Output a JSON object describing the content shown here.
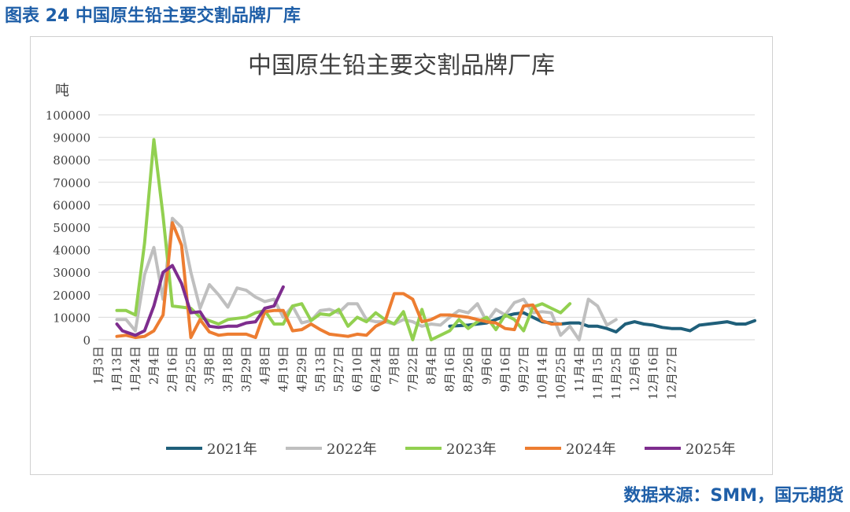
{
  "figure_title": "图表 24 中国原生铅主要交割品牌厂库",
  "source": "数据来源：SMM，国元期货",
  "chart_data": {
    "type": "line",
    "title": "中国原生铅主要交割品牌厂库",
    "ylabel": "吨",
    "ylim": [
      0,
      100000
    ],
    "yticks": [
      "0",
      "10000",
      "20000",
      "30000",
      "40000",
      "50000",
      "60000",
      "70000",
      "80000",
      "90000",
      "100000"
    ],
    "xticks": [
      "1月3日",
      "1月13日",
      "1月24日",
      "2月4日",
      "2月16日",
      "2月25日",
      "3月8日",
      "3月18日",
      "3月29日",
      "4月8日",
      "4月19日",
      "4月29日",
      "5月13日",
      "5月27日",
      "6月10日",
      "6月24日",
      "7月8日",
      "7月22日",
      "8月4日",
      "8月16日",
      "8月26日",
      "9月6日",
      "9月16日",
      "9月27日",
      "10月14日",
      "10月25日",
      "11月4日",
      "11月15日",
      "11月25日",
      "12月6日",
      "12月16日",
      "12月27日"
    ],
    "grid": true,
    "legend_position": "bottom",
    "series": [
      {
        "name": "2021年",
        "color": "#1f5f7a",
        "points": [
          [
            19.0,
            6000
          ],
          [
            20.0,
            6500
          ],
          [
            21.0,
            7500
          ],
          [
            21.5,
            9000
          ],
          [
            22.0,
            10500
          ],
          [
            22.5,
            11500
          ],
          [
            23.0,
            12000
          ],
          [
            23.5,
            10000
          ],
          [
            24.0,
            8000
          ],
          [
            24.5,
            7500
          ],
          [
            25.0,
            7000
          ],
          [
            25.5,
            7500
          ],
          [
            26.0,
            7500
          ],
          [
            26.5,
            6000
          ],
          [
            27.0,
            6000
          ],
          [
            27.5,
            5000
          ],
          [
            28.0,
            3500
          ],
          [
            28.5,
            7000
          ],
          [
            29.0,
            8000
          ],
          [
            29.5,
            7000
          ],
          [
            30.0,
            6500
          ],
          [
            30.5,
            5500
          ],
          [
            31.0,
            5000
          ],
          [
            31.5,
            5000
          ],
          [
            32.0,
            4000
          ],
          [
            32.5,
            6500
          ],
          [
            33.0,
            7000
          ],
          [
            33.5,
            7500
          ],
          [
            34.0,
            8000
          ],
          [
            34.5,
            7000
          ],
          [
            35.0,
            7000
          ],
          [
            35.5,
            8500
          ]
        ]
      },
      {
        "name": "2022年",
        "color": "#bfbfbf",
        "points": [
          [
            1.0,
            9000
          ],
          [
            1.5,
            9000
          ],
          [
            2.0,
            4000
          ],
          [
            2.5,
            29000
          ],
          [
            3.0,
            41000
          ],
          [
            3.5,
            18000
          ],
          [
            4.0,
            54000
          ],
          [
            4.5,
            50000
          ],
          [
            5.0,
            30000
          ],
          [
            5.5,
            14000
          ],
          [
            6.0,
            24500
          ],
          [
            6.5,
            20000
          ],
          [
            7.0,
            14500
          ],
          [
            7.5,
            23000
          ],
          [
            8.0,
            22000
          ],
          [
            8.5,
            19000
          ],
          [
            9.0,
            17000
          ],
          [
            9.5,
            18000
          ],
          [
            10.0,
            10000
          ],
          [
            10.5,
            15000
          ],
          [
            11.0,
            7500
          ],
          [
            11.5,
            8500
          ],
          [
            12.0,
            13000
          ],
          [
            12.5,
            13500
          ],
          [
            13.0,
            12000
          ],
          [
            13.5,
            16000
          ],
          [
            14.0,
            16000
          ],
          [
            14.5,
            9000
          ],
          [
            15.0,
            8000
          ],
          [
            15.5,
            8000
          ],
          [
            16.0,
            7000
          ],
          [
            16.5,
            9000
          ],
          [
            17.0,
            8000
          ],
          [
            17.5,
            6000
          ],
          [
            18.0,
            7000
          ],
          [
            18.5,
            6500
          ],
          [
            19.0,
            10000
          ],
          [
            19.5,
            13000
          ],
          [
            20.0,
            12000
          ],
          [
            20.5,
            16000
          ],
          [
            21.0,
            8000
          ],
          [
            21.5,
            13500
          ],
          [
            22.0,
            11000
          ],
          [
            22.5,
            16500
          ],
          [
            23.0,
            18000
          ],
          [
            23.5,
            12000
          ],
          [
            24.0,
            12500
          ],
          [
            24.5,
            12000
          ],
          [
            25.0,
            2000
          ],
          [
            25.5,
            6000
          ],
          [
            26.0,
            0
          ],
          [
            26.5,
            18000
          ],
          [
            27.0,
            15000
          ],
          [
            27.5,
            6500
          ],
          [
            28.0,
            9000
          ]
        ]
      },
      {
        "name": "2023年",
        "color": "#92d050",
        "points": [
          [
            1.0,
            13000
          ],
          [
            1.5,
            13000
          ],
          [
            2.0,
            11000
          ],
          [
            2.5,
            43000
          ],
          [
            3.0,
            89000
          ],
          [
            3.5,
            55000
          ],
          [
            4.0,
            15000
          ],
          [
            4.5,
            14500
          ],
          [
            5.0,
            14000
          ],
          [
            5.5,
            10000
          ],
          [
            6.0,
            8500
          ],
          [
            6.5,
            7000
          ],
          [
            7.0,
            9000
          ],
          [
            7.5,
            9500
          ],
          [
            8.0,
            10000
          ],
          [
            8.5,
            12000
          ],
          [
            9.0,
            13000
          ],
          [
            9.5,
            7000
          ],
          [
            10.0,
            7000
          ],
          [
            10.5,
            15000
          ],
          [
            11.0,
            16000
          ],
          [
            11.5,
            8500
          ],
          [
            12.0,
            11500
          ],
          [
            12.5,
            11000
          ],
          [
            13.0,
            13500
          ],
          [
            13.5,
            6000
          ],
          [
            14.0,
            10000
          ],
          [
            14.5,
            8000
          ],
          [
            15.0,
            12000
          ],
          [
            15.5,
            9000
          ],
          [
            16.0,
            7000
          ],
          [
            16.5,
            12500
          ],
          [
            17.0,
            0
          ],
          [
            17.5,
            13500
          ],
          [
            18.0,
            0
          ],
          [
            18.5,
            2000
          ],
          [
            19.0,
            4000
          ],
          [
            19.5,
            9000
          ],
          [
            20.0,
            5000
          ],
          [
            20.5,
            8000
          ],
          [
            21.0,
            10000
          ],
          [
            21.5,
            4500
          ],
          [
            22.0,
            11000
          ],
          [
            22.5,
            9000
          ],
          [
            23.0,
            4000
          ],
          [
            23.5,
            14500
          ],
          [
            24.0,
            16000
          ],
          [
            24.5,
            14000
          ],
          [
            25.0,
            12000
          ],
          [
            25.5,
            16000
          ]
        ]
      },
      {
        "name": "2024年",
        "color": "#ed7d31",
        "points": [
          [
            1.0,
            1500
          ],
          [
            1.5,
            2000
          ],
          [
            2.0,
            1000
          ],
          [
            2.5,
            1500
          ],
          [
            3.0,
            4000
          ],
          [
            3.5,
            11000
          ],
          [
            4.0,
            52000
          ],
          [
            4.5,
            42000
          ],
          [
            5.0,
            1000
          ],
          [
            5.5,
            9000
          ],
          [
            6.0,
            3500
          ],
          [
            6.5,
            2000
          ],
          [
            7.0,
            2500
          ],
          [
            7.5,
            2500
          ],
          [
            8.0,
            2500
          ],
          [
            8.5,
            1000
          ],
          [
            9.0,
            12500
          ],
          [
            9.5,
            13000
          ],
          [
            10.0,
            13000
          ],
          [
            10.5,
            4000
          ],
          [
            11.0,
            4500
          ],
          [
            11.5,
            7000
          ],
          [
            12.0,
            4500
          ],
          [
            12.5,
            2500
          ],
          [
            13.0,
            2000
          ],
          [
            13.5,
            1500
          ],
          [
            14.0,
            2500
          ],
          [
            14.5,
            2000
          ],
          [
            15.0,
            6000
          ],
          [
            15.5,
            8000
          ],
          [
            16.0,
            20500
          ],
          [
            16.5,
            20500
          ],
          [
            17.0,
            18000
          ],
          [
            17.5,
            8000
          ],
          [
            18.0,
            9000
          ],
          [
            18.5,
            11000
          ],
          [
            19.0,
            11000
          ],
          [
            19.5,
            10500
          ],
          [
            20.0,
            10000
          ],
          [
            20.5,
            9000
          ],
          [
            21.0,
            8000
          ],
          [
            21.5,
            7500
          ],
          [
            22.0,
            5000
          ],
          [
            22.5,
            4500
          ],
          [
            23.0,
            15000
          ],
          [
            23.5,
            15500
          ],
          [
            24.0,
            8500
          ],
          [
            24.5,
            7000
          ],
          [
            25.0,
            7000
          ]
        ]
      },
      {
        "name": "2025年",
        "color": "#7e2d8e",
        "points": [
          [
            1.0,
            7000
          ],
          [
            1.3,
            4000
          ],
          [
            2.0,
            2000
          ],
          [
            2.5,
            4000
          ],
          [
            3.0,
            15000
          ],
          [
            3.5,
            30000
          ],
          [
            4.0,
            33000
          ],
          [
            4.5,
            25000
          ],
          [
            5.0,
            12000
          ],
          [
            5.5,
            12500
          ],
          [
            6.0,
            6000
          ],
          [
            6.5,
            5500
          ],
          [
            7.0,
            6000
          ],
          [
            7.5,
            6000
          ],
          [
            8.0,
            7500
          ],
          [
            8.5,
            8000
          ],
          [
            9.0,
            14000
          ],
          [
            9.5,
            15000
          ],
          [
            10.0,
            23500
          ]
        ]
      }
    ]
  }
}
